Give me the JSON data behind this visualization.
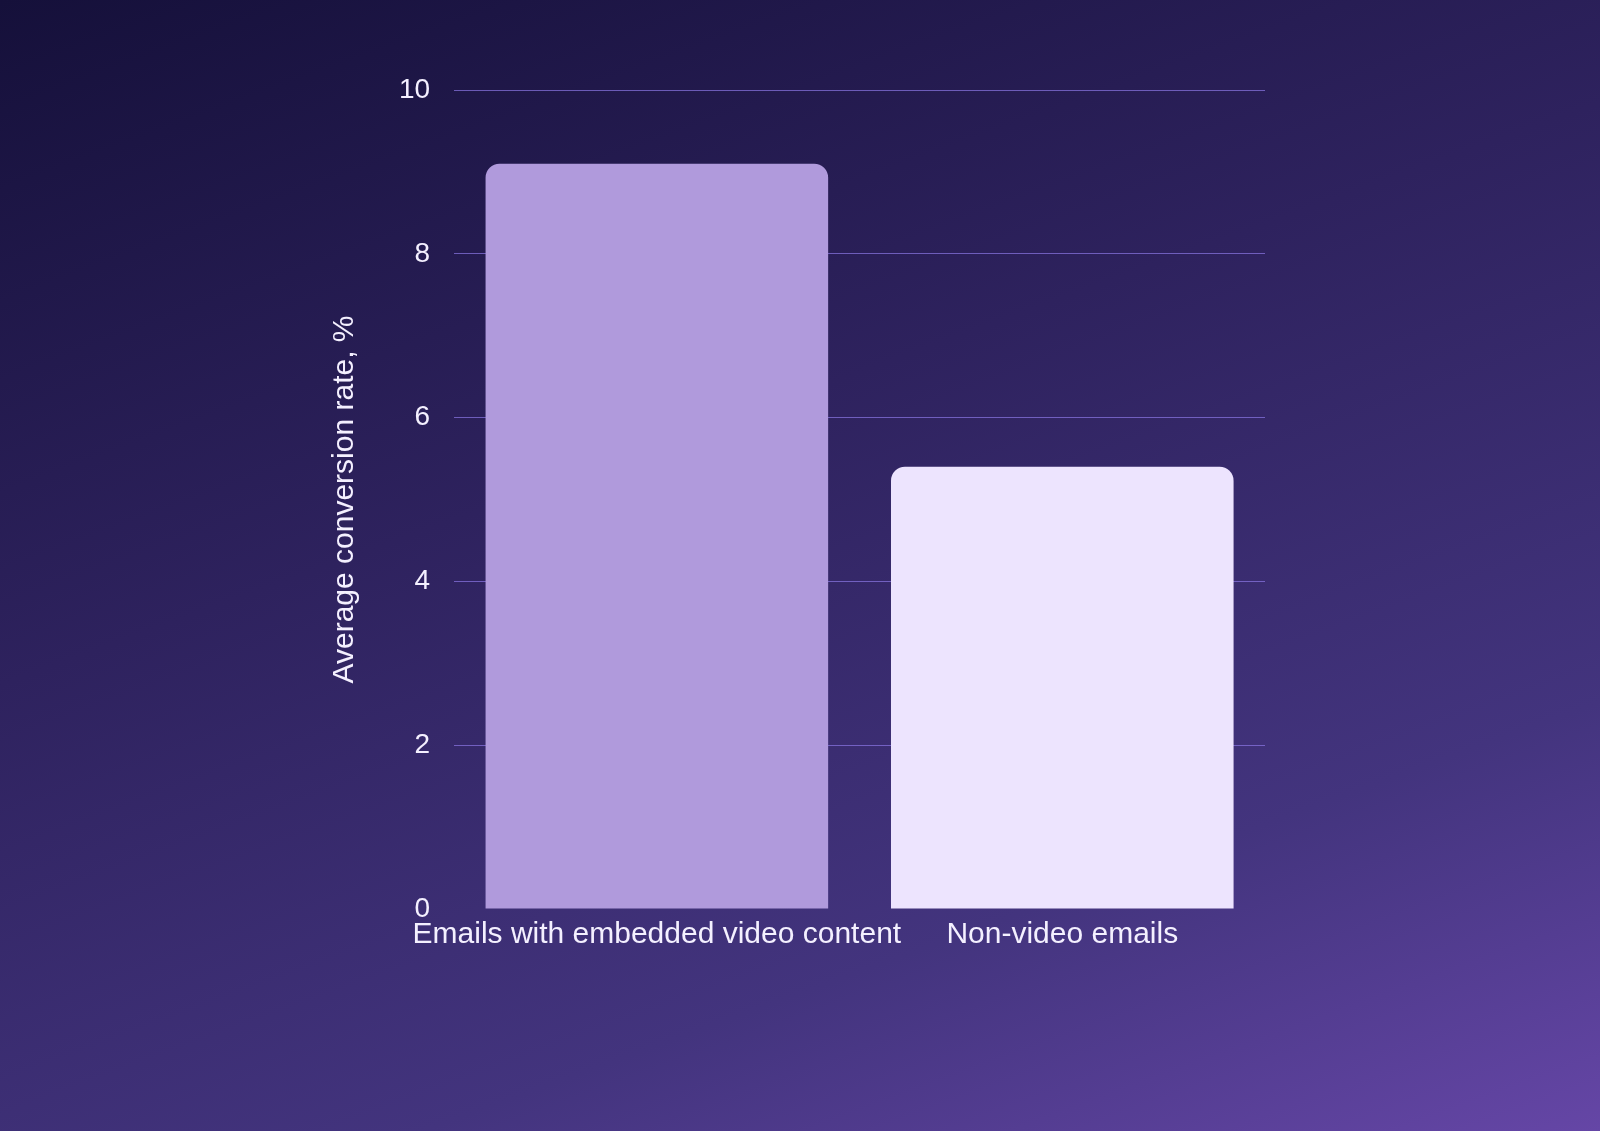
{
  "chart_data": {
    "type": "bar",
    "ylabel": "Average conversion rate, %",
    "categories": [
      "Emails with embedded video content",
      "Non-video emails"
    ],
    "values": [
      9.1,
      5.4
    ],
    "colors": [
      "#b09adc",
      "#ede4fe"
    ],
    "ylim": [
      0,
      10
    ],
    "yticks": [
      0,
      2,
      4,
      6,
      8,
      10
    ],
    "grid": "y",
    "legend": false
  }
}
